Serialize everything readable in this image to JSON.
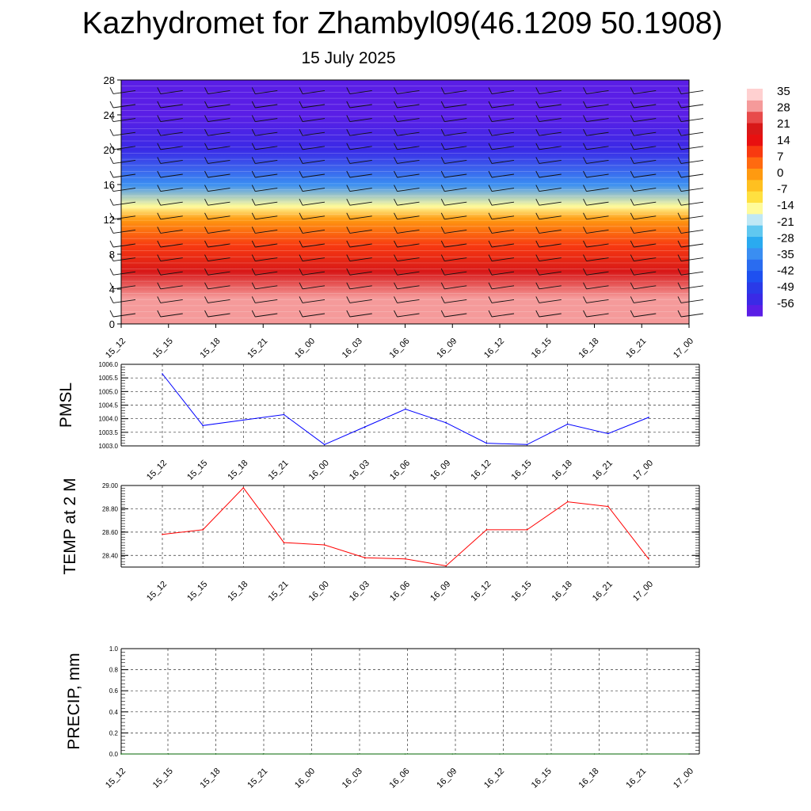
{
  "title": "Kazhydromet for Zhambyl09(46.1209 50.1908)",
  "subtitle": "15 July 2025",
  "time_labels": [
    "15_12",
    "15_15",
    "15_18",
    "15_21",
    "16_00",
    "16_03",
    "16_06",
    "16_09",
    "16_12",
    "16_15",
    "16_18",
    "16_21",
    "17_00"
  ],
  "colors": {
    "pmsl_line": "#0000ff",
    "temp_line": "#ff0000",
    "precip_line": "#006400",
    "grid": "#333333",
    "colorbar": [
      "#5a1ee6",
      "#3a2ae6",
      "#2a3ae8",
      "#1e50f0",
      "#2a6cf0",
      "#3a8ef2",
      "#2aaaf0",
      "#60c8f0",
      "#bfe8f5",
      "#fffb9a",
      "#ffe040",
      "#ffc020",
      "#ff9a10",
      "#ff6a10",
      "#f83a10",
      "#e81010",
      "#d81818",
      "#e84a4a",
      "#f59a9a",
      "#ffd0d0"
    ]
  },
  "chart_data": [
    {
      "type": "heatmap",
      "name": "vertical-profile",
      "x": [
        "15_12",
        "15_15",
        "15_18",
        "15_21",
        "16_00",
        "16_03",
        "16_06",
        "16_09",
        "16_12",
        "16_15",
        "16_18",
        "16_21",
        "17_00"
      ],
      "y_ticks": [
        0,
        4,
        8,
        12,
        16,
        20,
        24,
        28
      ],
      "ylim": [
        0,
        28
      ],
      "colorbar_labels": [
        "35",
        "28",
        "21",
        "14",
        "7",
        "0",
        "-7",
        "-14",
        "-21",
        "-28",
        "-35",
        "-42",
        "-49",
        "-56"
      ],
      "colorbar_range": [
        -60,
        38
      ],
      "profile": [
        {
          "h": 0,
          "v": 31
        },
        {
          "h": 3,
          "v": 30
        },
        {
          "h": 6,
          "v": 22
        },
        {
          "h": 9,
          "v": 12
        },
        {
          "h": 12,
          "v": 0
        },
        {
          "h": 13.5,
          "v": -14
        },
        {
          "h": 16,
          "v": -35
        },
        {
          "h": 20,
          "v": -52
        },
        {
          "h": 24,
          "v": -58
        },
        {
          "h": 28,
          "v": -58
        }
      ]
    },
    {
      "type": "line",
      "name": "pmsl",
      "ylabel": "PMSL",
      "ylim": [
        1003.0,
        1006.0
      ],
      "y_ticks": [
        "1003.0",
        "1003.5",
        "1004.0",
        "1004.5",
        "1005.0",
        "1005.5",
        "1006.0"
      ],
      "x": [
        "15_12",
        "15_15",
        "15_18",
        "15_21",
        "16_00",
        "16_03",
        "16_06",
        "16_09",
        "16_12",
        "16_15",
        "16_18",
        "16_21",
        "17_00"
      ],
      "values": [
        1005.65,
        1003.75,
        1003.95,
        1004.15,
        1003.05,
        1003.7,
        1004.35,
        1003.85,
        1003.1,
        1003.05,
        1003.8,
        1003.45,
        1004.05
      ]
    },
    {
      "type": "line",
      "name": "temperature",
      "ylabel": "TEMP at 2 M",
      "ylim": [
        28.3,
        29.0
      ],
      "y_ticks": [
        "28.40",
        "28.60",
        "28.80",
        "29.00"
      ],
      "x": [
        "15_12",
        "15_15",
        "15_18",
        "15_21",
        "16_00",
        "16_03",
        "16_06",
        "16_09",
        "16_12",
        "16_15",
        "16_18",
        "16_21",
        "17_00"
      ],
      "values": [
        28.58,
        28.62,
        28.98,
        28.51,
        28.49,
        28.38,
        28.37,
        28.31,
        28.62,
        28.62,
        28.86,
        28.82,
        28.37
      ]
    },
    {
      "type": "line",
      "name": "precipitation",
      "ylabel": "PRECIP, mm",
      "ylim": [
        0.0,
        1.0
      ],
      "y_ticks": [
        "0.0",
        "0.2",
        "0.4",
        "0.6",
        "0.8",
        "1.0"
      ],
      "x": [
        "15_12",
        "15_15",
        "15_18",
        "15_21",
        "16_00",
        "16_03",
        "16_06",
        "16_09",
        "16_12",
        "16_15",
        "16_18",
        "16_21",
        "17_00"
      ],
      "values": [
        0,
        0,
        0,
        0,
        0,
        0,
        0,
        0,
        0,
        0,
        0,
        0,
        0
      ]
    }
  ]
}
